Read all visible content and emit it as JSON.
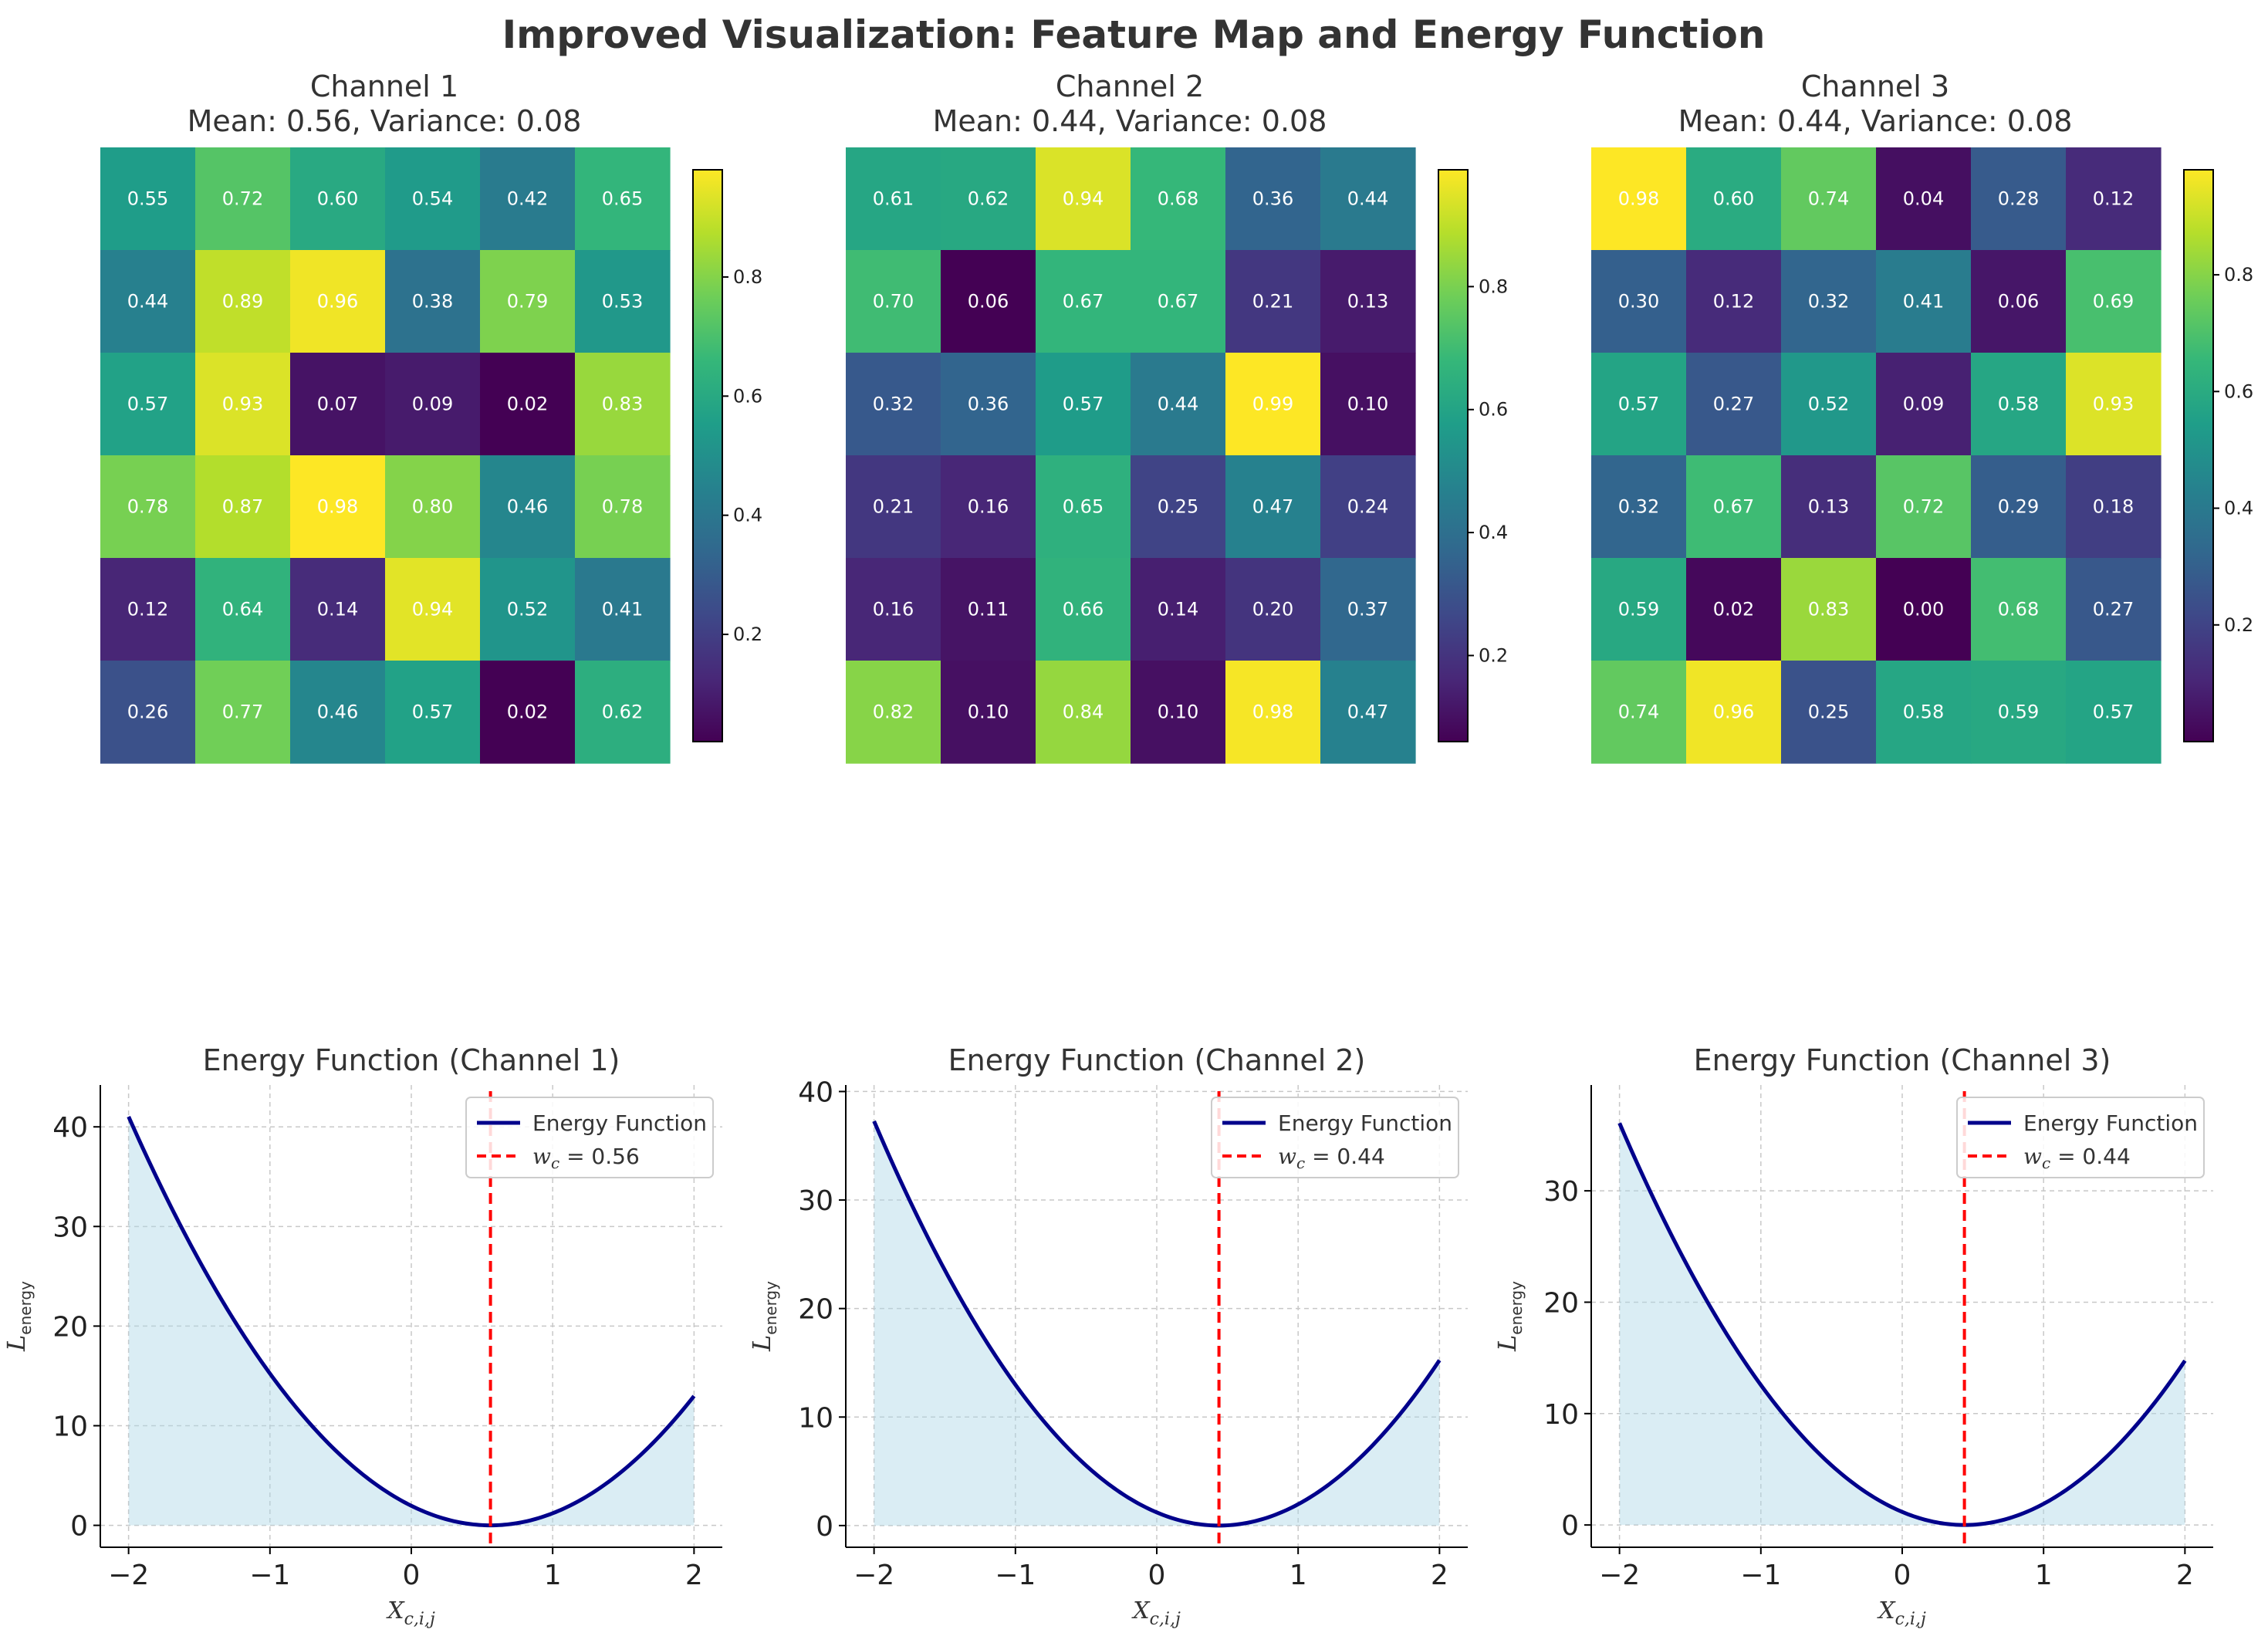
{
  "suptitle": "Improved Visualization: Feature Map and Energy Function",
  "colormap": [
    "#440154",
    "#482878",
    "#3e4989",
    "#31688e",
    "#26828e",
    "#1f9e89",
    "#35b779",
    "#6ece58",
    "#b5de2b",
    "#fde725"
  ],
  "chart_data": [
    {
      "type": "heatmap",
      "title_line1": "Channel 1",
      "title_line2": "Mean: 0.56, Variance: 0.08",
      "values": [
        [
          0.55,
          0.72,
          0.6,
          0.54,
          0.42,
          0.65
        ],
        [
          0.44,
          0.89,
          0.96,
          0.38,
          0.79,
          0.53
        ],
        [
          0.57,
          0.93,
          0.07,
          0.09,
          0.02,
          0.83
        ],
        [
          0.78,
          0.87,
          0.98,
          0.8,
          0.46,
          0.78
        ],
        [
          0.12,
          0.64,
          0.14,
          0.94,
          0.52,
          0.41
        ],
        [
          0.26,
          0.77,
          0.46,
          0.57,
          0.02,
          0.62
        ]
      ],
      "labels": [
        [
          "0.55",
          "0.72",
          "0.60",
          "0.54",
          "0.42",
          "0.65"
        ],
        [
          "0.44",
          "0.89",
          "0.96",
          "0.38",
          "0.79",
          "0.53"
        ],
        [
          "0.57",
          "0.93",
          "0.07",
          "0.09",
          "0.02",
          "0.83"
        ],
        [
          "0.78",
          "0.87",
          "0.98",
          "0.80",
          "0.46",
          "0.78"
        ],
        [
          "0.12",
          "0.64",
          "0.14",
          "0.94",
          "0.52",
          "0.41"
        ],
        [
          "0.26",
          "0.77",
          "0.46",
          "0.57",
          "0.02",
          "0.62"
        ]
      ],
      "colorbar": {
        "min": 0.02,
        "max": 0.98,
        "ticks": [
          0.2,
          0.4,
          0.6,
          0.8
        ],
        "tick_labels": [
          "0.2",
          "0.4",
          "0.6",
          "0.8"
        ]
      }
    },
    {
      "type": "heatmap",
      "title_line1": "Channel 2",
      "title_line2": "Mean: 0.44, Variance: 0.08",
      "values": [
        [
          0.61,
          0.62,
          0.94,
          0.68,
          0.36,
          0.44
        ],
        [
          0.7,
          0.06,
          0.67,
          0.67,
          0.21,
          0.13
        ],
        [
          0.32,
          0.36,
          0.57,
          0.44,
          0.99,
          0.1
        ],
        [
          0.21,
          0.16,
          0.65,
          0.25,
          0.47,
          0.24
        ],
        [
          0.16,
          0.11,
          0.66,
          0.14,
          0.2,
          0.37
        ],
        [
          0.82,
          0.1,
          0.84,
          0.1,
          0.98,
          0.47
        ]
      ],
      "labels": [
        [
          "0.61",
          "0.62",
          "0.94",
          "0.68",
          "0.36",
          "0.44"
        ],
        [
          "0.70",
          "0.06",
          "0.67",
          "0.67",
          "0.21",
          "0.13"
        ],
        [
          "0.32",
          "0.36",
          "0.57",
          "0.44",
          "0.99",
          "0.10"
        ],
        [
          "0.21",
          "0.16",
          "0.65",
          "0.25",
          "0.47",
          "0.24"
        ],
        [
          "0.16",
          "0.11",
          "0.66",
          "0.14",
          "0.20",
          "0.37"
        ],
        [
          "0.82",
          "0.10",
          "0.84",
          "0.10",
          "0.98",
          "0.47"
        ]
      ],
      "colorbar": {
        "min": 0.06,
        "max": 0.99,
        "ticks": [
          0.2,
          0.4,
          0.6,
          0.8
        ],
        "tick_labels": [
          "0.2",
          "0.4",
          "0.6",
          "0.8"
        ]
      }
    },
    {
      "type": "heatmap",
      "title_line1": "Channel 3",
      "title_line2": "Mean: 0.44, Variance: 0.08",
      "values": [
        [
          0.98,
          0.6,
          0.74,
          0.04,
          0.28,
          0.12
        ],
        [
          0.3,
          0.12,
          0.32,
          0.41,
          0.06,
          0.69
        ],
        [
          0.57,
          0.27,
          0.52,
          0.09,
          0.58,
          0.93
        ],
        [
          0.32,
          0.67,
          0.13,
          0.72,
          0.29,
          0.18
        ],
        [
          0.59,
          0.02,
          0.83,
          0.0,
          0.68,
          0.27
        ],
        [
          0.74,
          0.96,
          0.25,
          0.58,
          0.59,
          0.57
        ]
      ],
      "labels": [
        [
          "0.98",
          "0.60",
          "0.74",
          "0.04",
          "0.28",
          "0.12"
        ],
        [
          "0.30",
          "0.12",
          "0.32",
          "0.41",
          "0.06",
          "0.69"
        ],
        [
          "0.57",
          "0.27",
          "0.52",
          "0.09",
          "0.58",
          "0.93"
        ],
        [
          "0.32",
          "0.67",
          "0.13",
          "0.72",
          "0.29",
          "0.18"
        ],
        [
          "0.59",
          "0.02",
          "0.83",
          "0.00",
          "0.68",
          "0.27"
        ],
        [
          "0.74",
          "0.96",
          "0.25",
          "0.58",
          "0.59",
          "0.57"
        ]
      ],
      "colorbar": {
        "min": 0.0,
        "max": 0.98,
        "ticks": [
          0.2,
          0.4,
          0.6,
          0.8
        ],
        "tick_labels": [
          "0.2",
          "0.4",
          "0.6",
          "0.8"
        ]
      }
    },
    {
      "type": "line",
      "title": "Energy Function (Channel 1)",
      "xlabel": "X_{c,i,j}",
      "ylabel": "L_energy",
      "w_c": 0.56,
      "coefficient": 6.26,
      "xlim": [
        -2.2,
        2.2
      ],
      "ylim": [
        -2.2,
        44.2
      ],
      "xticks": [
        -2,
        -1,
        0,
        1,
        2
      ],
      "xtick_labels": [
        "−2",
        "−1",
        "0",
        "1",
        "2"
      ],
      "yticks": [
        0,
        10,
        20,
        30,
        40
      ],
      "ytick_labels": [
        "0",
        "10",
        "20",
        "30",
        "40"
      ],
      "x_range": [
        -2,
        2
      ],
      "legend": {
        "position": "top-right",
        "line_label": "Energy Function",
        "vline_label_prefix": "w",
        "vline_label_sub": "c",
        "vline_label_value": " = 0.56"
      },
      "line_color": "#00008b",
      "fill_color": "#add8e6",
      "vline_color": "#ff0000"
    },
    {
      "type": "line",
      "title": "Energy Function (Channel 2)",
      "xlabel": "X_{c,i,j}",
      "ylabel": "L_energy",
      "w_c": 0.44,
      "coefficient": 6.26,
      "xlim": [
        -2.2,
        2.2
      ],
      "ylim": [
        -2.0,
        40.6
      ],
      "xticks": [
        -2,
        -1,
        0,
        1,
        2
      ],
      "xtick_labels": [
        "−2",
        "−1",
        "0",
        "1",
        "2"
      ],
      "yticks": [
        0,
        10,
        20,
        30,
        40
      ],
      "ytick_labels": [
        "0",
        "10",
        "20",
        "30",
        "40"
      ],
      "x_range": [
        -2,
        2
      ],
      "legend": {
        "position": "top-right",
        "line_label": "Energy Function",
        "vline_label_prefix": "w",
        "vline_label_sub": "c",
        "vline_label_value": " = 0.44"
      },
      "line_color": "#00008b",
      "fill_color": "#add8e6",
      "vline_color": "#ff0000"
    },
    {
      "type": "line",
      "title": "Energy Function (Channel 3)",
      "xlabel": "X_{c,i,j}",
      "ylabel": "L_energy",
      "w_c": 0.44,
      "coefficient": 6.06,
      "xlim": [
        -2.2,
        2.2
      ],
      "ylim": [
        -2.0,
        39.5
      ],
      "xticks": [
        -2,
        -1,
        0,
        1,
        2
      ],
      "xtick_labels": [
        "−2",
        "−1",
        "0",
        "1",
        "2"
      ],
      "yticks": [
        0,
        10,
        20,
        30
      ],
      "ytick_labels": [
        "0",
        "10",
        "20",
        "30"
      ],
      "x_range": [
        -2,
        2
      ],
      "legend": {
        "position": "top-right",
        "line_label": "Energy Function",
        "vline_label_prefix": "w",
        "vline_label_sub": "c",
        "vline_label_value": " = 0.44"
      },
      "line_color": "#00008b",
      "fill_color": "#add8e6",
      "vline_color": "#ff0000"
    }
  ]
}
